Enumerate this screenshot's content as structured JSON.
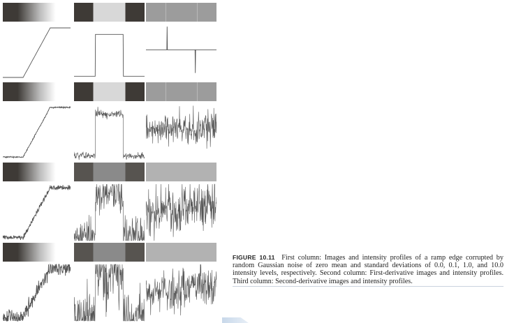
{
  "figure": {
    "label": "FIGURE 10.11",
    "caption": "First column: Images and intensity profiles of a ramp edge corrupted by random Gaussian noise of zero mean and standard deviations of 0.0, 0.1, 1.0, and 10.0 intensity levels, respectively. Second column: First-derivative images and intensity profiles. Third column: Second-derivative images and intensity profiles.",
    "noise_std_levels": [
      0.0,
      0.1,
      1.0,
      10.0
    ],
    "columns": [
      "ramp-edge",
      "first-derivative",
      "second-derivative"
    ],
    "colors": {
      "dark": "#3e3a36",
      "light": "#d8d8d8",
      "gray": "#9c9c9c",
      "line": "#555555"
    }
  }
}
